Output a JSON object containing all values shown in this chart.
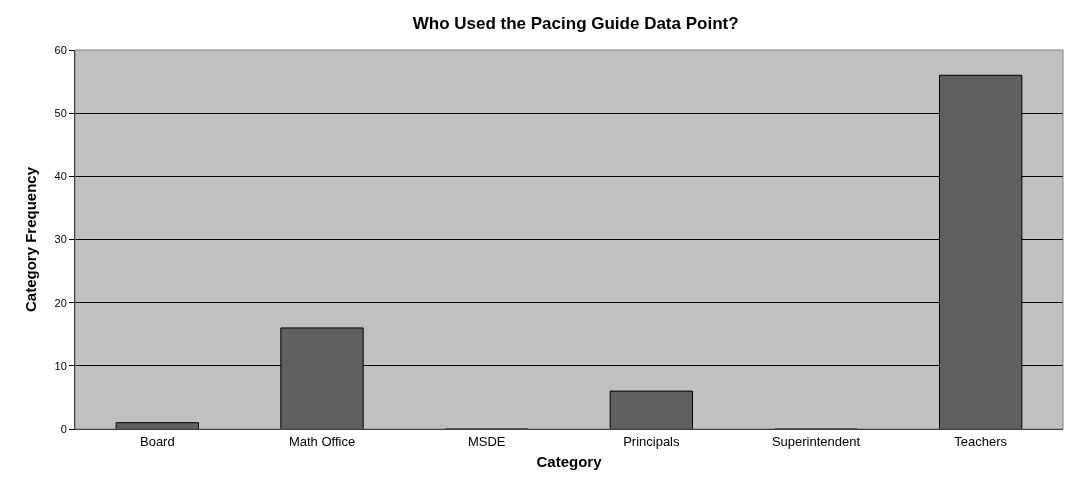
{
  "chart_data": {
    "type": "bar",
    "title": "Who Used the Pacing Guide Data Point?",
    "xlabel": "Category",
    "ylabel": "Category Frequency",
    "categories": [
      "Board",
      "Math Office",
      "MSDE",
      "Principals",
      "Superintendent",
      "Teachers"
    ],
    "values": [
      1,
      16,
      0,
      6,
      0,
      56
    ],
    "color": "#606060",
    "ylim": [
      0,
      60
    ],
    "yticks": [
      0,
      10,
      20,
      30,
      40,
      50,
      60
    ],
    "grid": "y"
  }
}
